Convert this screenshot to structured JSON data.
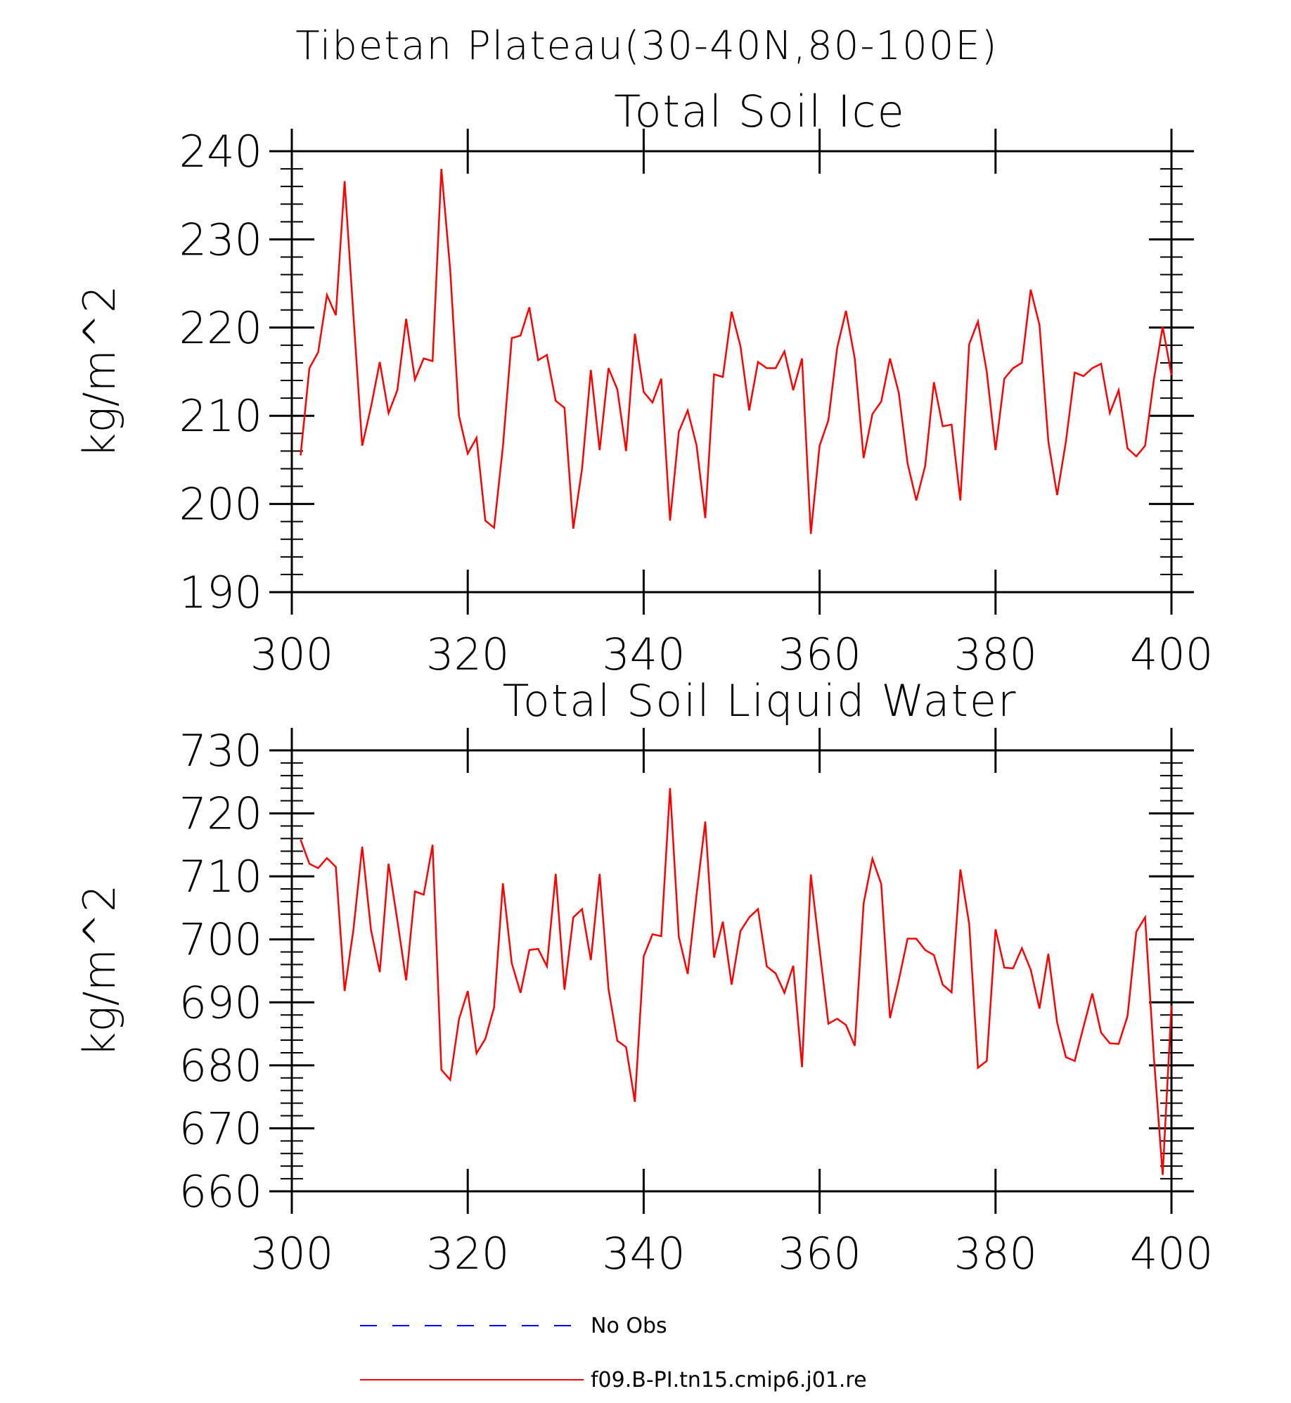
{
  "figure_title": "Tibetan Plateau(30-40N,80-100E)",
  "legend": [
    {
      "label": "No Obs",
      "color": "#0000ff",
      "style": "dashed"
    },
    {
      "label": "f09.B-PI.tn15.cmip6.j01.re",
      "color": "#ff0000",
      "style": "solid"
    }
  ],
  "chart_data": [
    {
      "type": "line",
      "title": "Total Soil Ice",
      "xlabel": "",
      "ylabel": "kg/m^2",
      "xlim": [
        300,
        400
      ],
      "ylim": [
        190,
        240
      ],
      "xticks": [
        300,
        320,
        340,
        360,
        380,
        400
      ],
      "yticks": [
        190,
        200,
        210,
        220,
        230,
        240
      ],
      "grid": false,
      "x_start": 301,
      "x_step": 1,
      "series": [
        {
          "name": "f09.B-PI.tn15.cmip6.j01.re",
          "color": "#ff0000",
          "values": [
            205.5,
            215.4,
            217.2,
            223.7,
            221.4,
            236.6,
            221.4,
            206.6,
            211,
            216.1,
            210.3,
            212.9,
            221,
            214.1,
            216.5,
            216.2,
            238,
            226.6,
            210,
            205.7,
            207.5,
            198.1,
            197.3,
            206.5,
            218.8,
            219.1,
            222.3,
            216.3,
            216.9,
            211.7,
            210.9,
            197.2,
            204,
            215.2,
            206.1,
            215.4,
            213,
            206,
            219.3,
            212.7,
            211.5,
            214.2,
            198.1,
            208.2,
            210.6,
            206.7,
            198.4,
            214.7,
            214.4,
            221.8,
            217.9,
            210.6,
            216.1,
            215.4,
            215.4,
            217.3,
            212.9,
            216.5,
            196.6,
            206.6,
            209.5,
            217.7,
            221.9,
            216.5,
            205.2,
            210.2,
            211.6,
            216.5,
            212.6,
            204.6,
            200.4,
            204.3,
            213.8,
            208.8,
            209,
            200.4,
            218.1,
            220.7,
            215,
            206.1,
            214.2,
            215.4,
            216,
            224.3,
            220.3,
            207.1,
            201,
            207.1,
            214.9,
            214.5,
            215.4,
            215.9,
            210.3,
            212.9,
            206.3,
            205.4,
            206.6,
            214.1,
            220.1,
            214.6
          ]
        }
      ]
    },
    {
      "type": "line",
      "title": "Total Soil Liquid Water",
      "xlabel": "",
      "ylabel": "kg/m^2",
      "xlim": [
        300,
        400
      ],
      "ylim": [
        660,
        730
      ],
      "xticks": [
        300,
        320,
        340,
        360,
        380,
        400
      ],
      "yticks": [
        660,
        670,
        680,
        690,
        700,
        710,
        720,
        730
      ],
      "grid": false,
      "x_start": 301,
      "x_step": 1,
      "series": [
        {
          "name": "f09.B-PI.tn15.cmip6.j01.re",
          "color": "#ff0000",
          "values": [
            715.8,
            712,
            711.3,
            712.9,
            711.5,
            691.8,
            701.5,
            714.7,
            701.5,
            694.8,
            712,
            703,
            693.5,
            707.6,
            707.1,
            715,
            679.3,
            677.7,
            687.3,
            691.8,
            681.9,
            684.2,
            689.2,
            708.9,
            696.2,
            691.5,
            698.3,
            698.5,
            695.7,
            710.4,
            692,
            703.5,
            704.8,
            696.7,
            710.4,
            692.1,
            683.9,
            682.9,
            674.2,
            697.3,
            700.8,
            700.5,
            724,
            700.4,
            694.5,
            707,
            718.7,
            697.1,
            702.8,
            692.8,
            701.3,
            703.5,
            704.8,
            695.7,
            694.6,
            691.5,
            695.8,
            679.7,
            710.3,
            698.4,
            686.6,
            687.4,
            686.4,
            683.1,
            705.7,
            712.8,
            708.8,
            687.5,
            693.5,
            700.1,
            700.1,
            698.3,
            697.5,
            692.8,
            691.6,
            711.1,
            702.5,
            679.6,
            680.7,
            701.6,
            695.5,
            695.4,
            698.6,
            695.2,
            689,
            697.7,
            686.8,
            681.3,
            680.7,
            686.1,
            691.4,
            685.2,
            683.5,
            683.4,
            687.8,
            701.2,
            703.5,
            681.3,
            662.6,
            689.5
          ]
        }
      ]
    }
  ]
}
